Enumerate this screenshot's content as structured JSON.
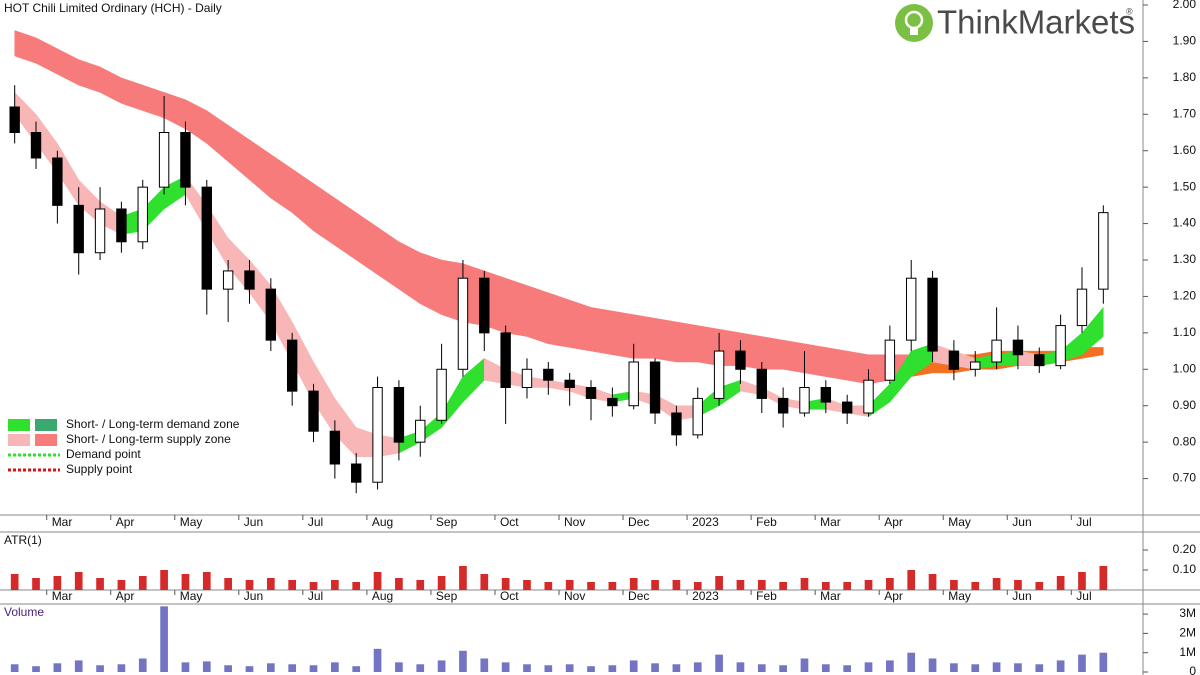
{
  "chart_data": [
    {
      "type": "candlestick",
      "title": "HOT Chili Limited Ordinary (HCH) - Daily",
      "logo": "ThinkMarkets",
      "logo_mark": "®",
      "categories": [
        null,
        null,
        "Mar",
        null,
        null,
        "Apr",
        null,
        null,
        "May",
        null,
        null,
        "Jun",
        null,
        null,
        "Jul",
        null,
        null,
        "Aug",
        null,
        null,
        "Sep",
        null,
        null,
        "Oct",
        null,
        null,
        "Nov",
        null,
        null,
        "Dec",
        null,
        null,
        "2023",
        null,
        null,
        "Feb",
        null,
        null,
        "Mar",
        null,
        null,
        "Apr",
        null,
        null,
        "May",
        null,
        null,
        "Jun",
        null,
        null,
        "Jul",
        null
      ],
      "open": [
        1.72,
        1.65,
        1.58,
        1.45,
        1.32,
        1.44,
        1.35,
        1.5,
        1.65,
        1.5,
        1.22,
        1.27,
        1.22,
        1.08,
        0.94,
        0.83,
        0.74,
        0.69,
        0.95,
        0.8,
        0.86,
        1.0,
        1.25,
        1.1,
        0.95,
        1.0,
        0.97,
        0.95,
        0.92,
        0.9,
        1.02,
        0.88,
        0.82,
        0.92,
        1.05,
        1.0,
        0.92,
        0.88,
        0.95,
        0.91,
        0.88,
        0.97,
        1.08,
        1.25,
        1.05,
        1.0,
        1.02,
        1.08,
        1.04,
        1.01,
        1.12,
        1.22
      ],
      "high": [
        1.78,
        1.68,
        1.6,
        1.5,
        1.5,
        1.46,
        1.52,
        1.75,
        1.68,
        1.52,
        1.3,
        1.3,
        1.25,
        1.1,
        0.96,
        0.86,
        0.77,
        0.98,
        0.97,
        0.9,
        1.07,
        1.3,
        1.27,
        1.12,
        1.03,
        1.02,
        0.99,
        0.97,
        0.95,
        1.07,
        1.03,
        0.9,
        0.95,
        1.1,
        1.08,
        1.02,
        0.95,
        1.05,
        0.97,
        0.93,
        1.0,
        1.12,
        1.3,
        1.27,
        1.08,
        1.05,
        1.17,
        1.12,
        1.06,
        1.15,
        1.28,
        1.45
      ],
      "low": [
        1.62,
        1.55,
        1.4,
        1.26,
        1.3,
        1.32,
        1.33,
        1.48,
        1.45,
        1.15,
        1.13,
        1.18,
        1.05,
        0.9,
        0.8,
        0.7,
        0.66,
        0.67,
        0.75,
        0.76,
        0.85,
        0.98,
        1.05,
        0.85,
        0.92,
        0.93,
        0.9,
        0.86,
        0.87,
        0.89,
        0.85,
        0.79,
        0.81,
        0.9,
        0.96,
        0.88,
        0.84,
        0.87,
        0.88,
        0.85,
        0.87,
        0.96,
        1.05,
        1.02,
        0.97,
        0.98,
        1.0,
        1.0,
        0.99,
        1.0,
        1.1,
        1.18
      ],
      "close": [
        1.65,
        1.58,
        1.45,
        1.32,
        1.44,
        1.35,
        1.5,
        1.65,
        1.5,
        1.22,
        1.27,
        1.22,
        1.08,
        0.94,
        0.83,
        0.74,
        0.69,
        0.95,
        0.8,
        0.86,
        1.0,
        1.25,
        1.1,
        0.95,
        1.0,
        0.97,
        0.95,
        0.92,
        0.9,
        1.02,
        0.88,
        0.82,
        0.92,
        1.05,
        1.0,
        0.92,
        0.88,
        0.95,
        0.91,
        0.88,
        0.97,
        1.08,
        1.25,
        1.05,
        1.0,
        1.02,
        1.08,
        1.04,
        1.01,
        1.12,
        1.22,
        1.43
      ],
      "ylim": [
        0.6,
        2.0
      ],
      "yticks": [
        {
          "value": 2.0,
          "label": "2.00"
        },
        {
          "value": 1.9,
          "label": "1.90"
        },
        {
          "value": 1.8,
          "label": "1.80"
        },
        {
          "value": 1.7,
          "label": "1.70"
        },
        {
          "value": 1.6,
          "label": "1.60"
        },
        {
          "value": 1.5,
          "label": "1.50"
        },
        {
          "value": 1.4,
          "label": "1.40"
        },
        {
          "value": 1.3,
          "label": "1.30"
        },
        {
          "value": 1.2,
          "label": "1.20"
        },
        {
          "value": 1.1,
          "label": "1.10"
        },
        {
          "value": 1.0,
          "label": "1.00"
        },
        {
          "value": 0.9,
          "label": "0.90"
        },
        {
          "value": 0.8,
          "label": "0.80"
        },
        {
          "value": 0.7,
          "label": "0.70"
        }
      ],
      "bands": [
        {
          "color": "#f87b7b",
          "cross_color": "#f46f22",
          "upper": [
            1.93,
            1.91,
            1.88,
            1.85,
            1.83,
            1.8,
            1.78,
            1.76,
            1.74,
            1.71,
            1.67,
            1.63,
            1.59,
            1.55,
            1.51,
            1.47,
            1.43,
            1.39,
            1.35,
            1.32,
            1.3,
            1.29,
            1.27,
            1.25,
            1.23,
            1.21,
            1.19,
            1.17,
            1.16,
            1.15,
            1.14,
            1.13,
            1.12,
            1.11,
            1.1,
            1.09,
            1.08,
            1.07,
            1.06,
            1.05,
            1.04,
            1.04,
            1.04,
            1.04,
            1.04,
            1.04,
            1.05,
            1.05,
            1.05,
            1.05,
            1.06,
            1.06
          ],
          "lower": [
            1.86,
            1.84,
            1.81,
            1.78,
            1.76,
            1.73,
            1.71,
            1.69,
            1.66,
            1.62,
            1.57,
            1.52,
            1.47,
            1.43,
            1.38,
            1.34,
            1.3,
            1.26,
            1.22,
            1.18,
            1.15,
            1.13,
            1.12,
            1.1,
            1.09,
            1.07,
            1.06,
            1.05,
            1.04,
            1.03,
            1.03,
            1.02,
            1.02,
            1.01,
            1.01,
            1.0,
            1.0,
            0.99,
            0.98,
            0.97,
            0.96,
            0.97,
            0.98,
            0.99,
            0.99,
            1.0,
            1.0,
            1.01,
            1.01,
            1.02,
            1.03,
            1.04
          ]
        },
        {
          "color": "#f8b6b6",
          "demand_color": "#2fe02f",
          "upper": [
            1.76,
            1.7,
            1.62,
            1.52,
            1.46,
            1.42,
            1.44,
            1.5,
            1.53,
            1.45,
            1.36,
            1.3,
            1.23,
            1.13,
            1.02,
            0.92,
            0.84,
            0.82,
            0.81,
            0.83,
            0.88,
            0.98,
            1.03,
            1.0,
            0.98,
            0.97,
            0.96,
            0.95,
            0.93,
            0.94,
            0.93,
            0.9,
            0.9,
            0.95,
            0.97,
            0.95,
            0.92,
            0.91,
            0.92,
            0.9,
            0.9,
            0.96,
            1.05,
            1.07,
            1.05,
            1.03,
            1.04,
            1.05,
            1.04,
            1.05,
            1.1,
            1.17
          ],
          "lower": [
            1.7,
            1.62,
            1.54,
            1.45,
            1.4,
            1.37,
            1.38,
            1.44,
            1.48,
            1.38,
            1.28,
            1.21,
            1.13,
            1.02,
            0.91,
            0.82,
            0.76,
            0.76,
            0.77,
            0.8,
            0.84,
            0.91,
            0.97,
            0.96,
            0.95,
            0.95,
            0.94,
            0.92,
            0.91,
            0.92,
            0.9,
            0.86,
            0.87,
            0.9,
            0.94,
            0.93,
            0.9,
            0.89,
            0.89,
            0.88,
            0.87,
            0.91,
            0.98,
            1.02,
            1.01,
            1.0,
            1.01,
            1.01,
            1.01,
            1.02,
            1.04,
            1.09
          ]
        }
      ],
      "legend": [
        {
          "colors": [
            "#2fe02f",
            "#3aa870"
          ],
          "label": "Short- / Long-term demand zone"
        },
        {
          "colors": [
            "#f8b6b6",
            "#f87b7b"
          ],
          "label": "Short- / Long-term supply zone"
        },
        {
          "line_color": "#2fe02f",
          "label": "Demand point"
        },
        {
          "line_color": "#dd1111",
          "label": "Supply point"
        }
      ]
    },
    {
      "type": "bar",
      "title": "ATR(1)",
      "color": "#d42a2a",
      "values": [
        0.08,
        0.06,
        0.07,
        0.09,
        0.06,
        0.05,
        0.07,
        0.1,
        0.08,
        0.09,
        0.06,
        0.05,
        0.06,
        0.05,
        0.04,
        0.05,
        0.04,
        0.09,
        0.06,
        0.05,
        0.07,
        0.12,
        0.08,
        0.06,
        0.05,
        0.04,
        0.05,
        0.04,
        0.04,
        0.06,
        0.05,
        0.05,
        0.04,
        0.07,
        0.05,
        0.05,
        0.04,
        0.06,
        0.04,
        0.04,
        0.05,
        0.06,
        0.1,
        0.08,
        0.05,
        0.04,
        0.06,
        0.05,
        0.04,
        0.07,
        0.09,
        0.12
      ],
      "ylim": [
        0,
        0.285
      ],
      "yticks": [
        {
          "value": 0.2,
          "label": "0.20"
        },
        {
          "value": 0.1,
          "label": "0.10"
        }
      ]
    },
    {
      "type": "bar",
      "title": "Volume",
      "color": "#7474c4",
      "values": [
        400000,
        300000,
        450000,
        600000,
        350000,
        400000,
        700000,
        3400000,
        500000,
        550000,
        350000,
        300000,
        450000,
        400000,
        350000,
        500000,
        300000,
        1200000,
        500000,
        400000,
        600000,
        1100000,
        700000,
        500000,
        400000,
        350000,
        400000,
        300000,
        350000,
        600000,
        450000,
        400000,
        500000,
        900000,
        500000,
        400000,
        350000,
        700000,
        400000,
        350000,
        500000,
        600000,
        1000000,
        700000,
        450000,
        400000,
        500000,
        450000,
        400000,
        600000,
        900000,
        1000000
      ],
      "ylim": [
        0,
        3470000
      ],
      "yticks": [
        {
          "value": 3000000,
          "label": "3M"
        },
        {
          "value": 2000000,
          "label": "2M"
        },
        {
          "value": 1000000,
          "label": "1M"
        },
        0
      ]
    }
  ]
}
